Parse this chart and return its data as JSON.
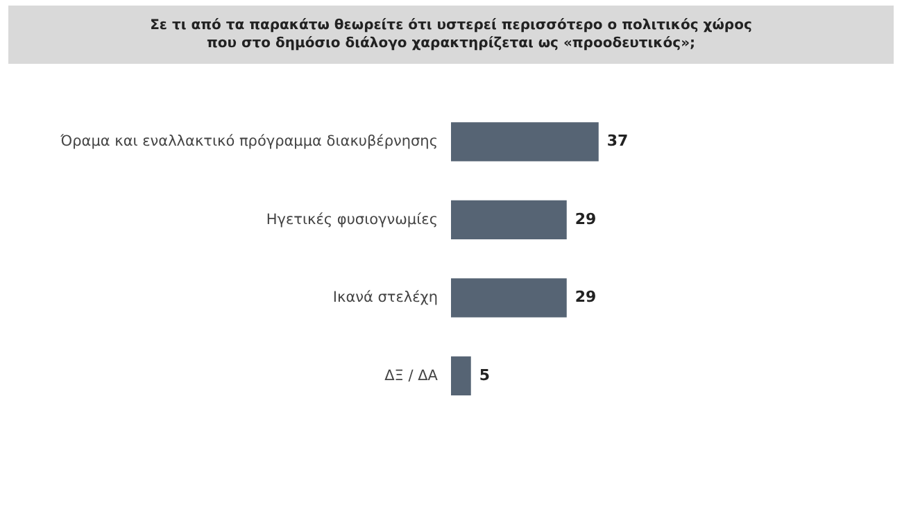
{
  "chart_data": {
    "type": "bar",
    "orientation": "horizontal",
    "title": "Σε τι από τα παρακάτω θεωρείτε ότι υστερεί περισσότερο ο πολιτικός χώρος\nπου στο δημόσιο διάλογο χαρακτηρίζεται ως «προοδευτικός»;",
    "categories": [
      "Όραμα και εναλλακτικό πρόγραμμα διακυβέρνησης",
      "Ηγετικές φυσιογνωμίες",
      "Ικανά στελέχη",
      "ΔΞ / ΔΑ"
    ],
    "values": [
      37,
      29,
      29,
      5
    ],
    "color": "#566474",
    "data_labels": true
  }
}
